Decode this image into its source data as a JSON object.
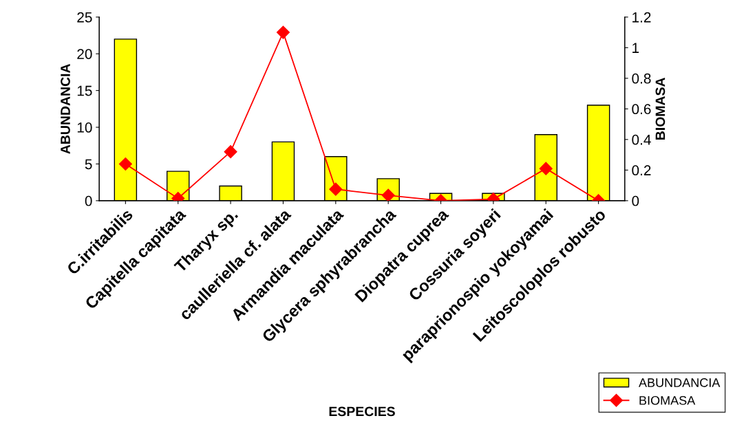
{
  "chart_data": {
    "type": "bar",
    "xlabel": "ESPECIES",
    "ylabel": "ABUNDANCIA",
    "y2label": "BIOMASA",
    "categories": [
      "C.irritabilis",
      "Capitella capitata",
      "Tharyx sp.",
      "caulleriella cf. alata",
      "Armandia maculata",
      "Glycera sphyrabrancha",
      "Diopatra cuprea",
      "Cossuria soyeri",
      "paraprionospio yokoyamai",
      "Leitoscoloplos robusto"
    ],
    "series": [
      {
        "name": "ABUNDANCIA",
        "color": "#ffff00",
        "values": [
          22,
          4,
          2,
          8,
          6,
          3,
          1,
          1,
          9,
          13
        ]
      },
      {
        "name": "BIOMASA",
        "type": "line",
        "axis": "y2",
        "color": "#ff0000",
        "marker": "diamond",
        "values": [
          0.24,
          0.015,
          0.32,
          1.1,
          0.075,
          0.035,
          0.0,
          0.01,
          0.21,
          0.0
        ]
      }
    ],
    "ylim": [
      0,
      25
    ],
    "yticks": [
      0,
      5,
      10,
      15,
      20,
      25
    ],
    "y2lim": [
      0,
      1.2
    ],
    "y2ticks": [
      0,
      0.2,
      0.4,
      0.6,
      0.8,
      1,
      1.2
    ],
    "grid": false,
    "legend": "bottom right"
  }
}
